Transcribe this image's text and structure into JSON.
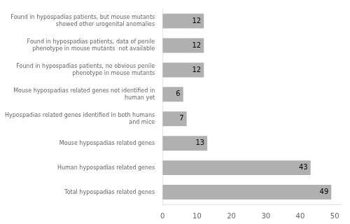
{
  "chart_data": {
    "type": "bar",
    "orientation": "horizontal",
    "categories": [
      "Total hypospadias related genes",
      "Human hypospadias related genes",
      "Mouse hypospadias related genes",
      "Hypospadias related genes identified in both humans\nand mice",
      "Mouse hypospadias related genes not identified in\nhuman yet",
      "Found in hypospadias patients, no obvious penile\nphenotype in mouse mutants",
      "Found in hypospadias patients, data of penile\nphenotype in mouse mutants  not available",
      "Found in hypospadias patients, but mouse mutants\nshowed other urogenital anomalies"
    ],
    "values": [
      49,
      43,
      13,
      7,
      6,
      12,
      12,
      12
    ],
    "color": "#b0b0b0",
    "xlim": [
      0,
      52
    ],
    "xticks": [
      0,
      10,
      20,
      30,
      40,
      50
    ],
    "grid": false,
    "data_labels": true
  }
}
